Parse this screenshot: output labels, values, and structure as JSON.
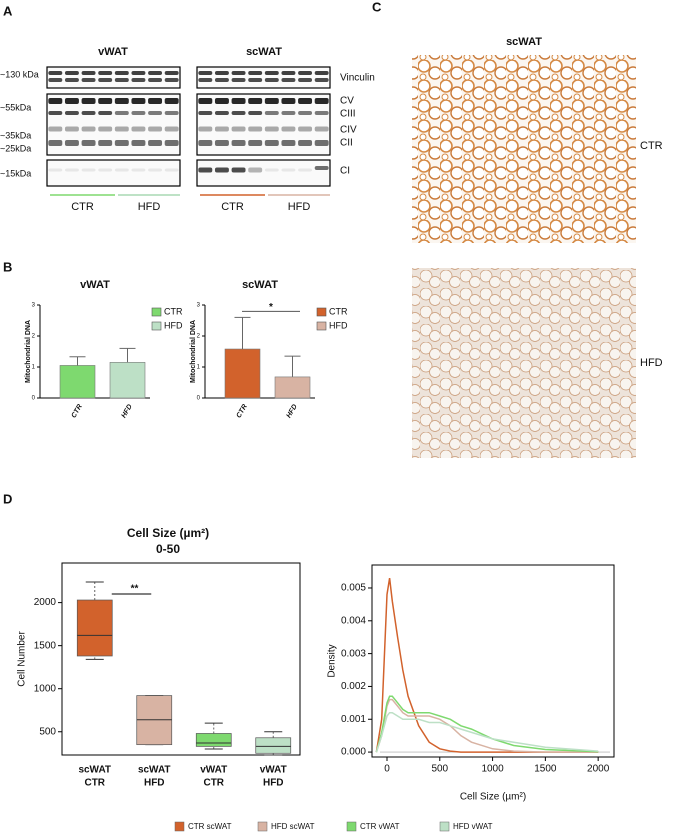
{
  "panel_a": {
    "letter": "A",
    "titles": [
      "vWAT",
      "scWAT"
    ],
    "markers": [
      "~130 kDa",
      "~55kDa",
      "~35kDa",
      "~25kDa",
      "~15kDa"
    ],
    "proteins": [
      "Vinculin",
      "CV",
      "CIII",
      "CIV",
      "CII",
      "CI"
    ],
    "groups": [
      "CTR",
      "HFD",
      "CTR",
      "HFD"
    ]
  },
  "panel_b": {
    "letter": "B"
  },
  "panel_c": {
    "letter": "C",
    "title": "scWAT",
    "labels": [
      "CTR",
      "HFD"
    ]
  },
  "panel_d": {
    "letter": "D"
  },
  "chart_data": [
    {
      "type": "bar",
      "title": "vWAT",
      "y_label": "Mitochondrial DNA",
      "categories": [
        "CTR",
        "HFD"
      ],
      "values": [
        1.05,
        1.15
      ],
      "errors": [
        0.28,
        0.45
      ],
      "colors": [
        "#7ed96f",
        "#bde0c6"
      ],
      "ylim": [
        0,
        3
      ],
      "yticks": [
        0,
        1,
        2,
        3
      ],
      "legend": true
    },
    {
      "type": "bar",
      "title": "scWAT",
      "y_label": "Mitochondrial DNA",
      "categories": [
        "CTR",
        "HFD"
      ],
      "values": [
        1.58,
        0.68
      ],
      "errors": [
        1.02,
        0.67
      ],
      "colors": [
        "#d2622c",
        "#d8b3a3"
      ],
      "ylim": [
        0,
        3
      ],
      "yticks": [
        0,
        1,
        2,
        3
      ],
      "legend": true,
      "significance": "*"
    },
    {
      "type": "box",
      "title": "Cell Size (µm²)",
      "subtitle": "0-50",
      "y_label": "Cell Number",
      "categories": [
        [
          "scWAT",
          "CTR"
        ],
        [
          "scWAT",
          "HFD"
        ],
        [
          "vWAT",
          "CTR"
        ],
        [
          "vWAT",
          "HFD"
        ]
      ],
      "whisker_low": [
        1340,
        350,
        300,
        230
      ],
      "q1": [
        1380,
        350,
        330,
        250
      ],
      "median": [
        1620,
        640,
        370,
        330
      ],
      "q3": [
        2030,
        920,
        480,
        430
      ],
      "whisker_high": [
        2240,
        920,
        600,
        500
      ],
      "colors": [
        "#d2622c",
        "#d8b3a3",
        "#7ed96f",
        "#bde0c6"
      ],
      "ylim": [
        230,
        2460
      ],
      "yticks": [
        500,
        1000,
        1500,
        2000
      ],
      "significance": "**"
    },
    {
      "type": "line",
      "x_label": "Cell Size (µm²)",
      "y_label": "Density",
      "x": [
        -100,
        -50,
        0,
        25,
        50,
        100,
        150,
        200,
        300,
        400,
        500,
        600,
        700,
        800,
        1000,
        1200,
        1500,
        2000
      ],
      "series": [
        {
          "name": "CTR scWAT",
          "color": "#d2622c",
          "values": [
            0,
            0.001,
            0.0048,
            0.0053,
            0.0046,
            0.0035,
            0.0025,
            0.0017,
            0.0008,
            0.0003,
            0.0001,
            3e-05,
            0,
            0,
            0,
            0,
            0,
            0
          ]
        },
        {
          "name": "HFD scWAT",
          "color": "#d8b3a3",
          "values": [
            0,
            0.0005,
            0.0014,
            0.0016,
            0.0016,
            0.0014,
            0.0012,
            0.0011,
            0.0011,
            0.0011,
            0.001,
            0.0008,
            0.0005,
            0.0003,
            0.0001,
            3e-05,
            0,
            0
          ]
        },
        {
          "name": "CTR vWAT",
          "color": "#7ed96f",
          "values": [
            0,
            0.0006,
            0.0015,
            0.0017,
            0.0017,
            0.0015,
            0.0013,
            0.0012,
            0.0012,
            0.0012,
            0.0011,
            0.001,
            0.0008,
            0.0007,
            0.0004,
            0.0002,
            8e-05,
            1e-05
          ]
        },
        {
          "name": "HFD vWAT",
          "color": "#bde0c6",
          "values": [
            0,
            0.0005,
            0.0011,
            0.0012,
            0.0012,
            0.0011,
            0.001,
            0.001,
            0.001,
            0.0009,
            0.0009,
            0.0008,
            0.0007,
            0.0006,
            0.0004,
            0.0003,
            0.00015,
            3e-05
          ]
        }
      ],
      "xlim": [
        -142,
        2150
      ],
      "xticks": [
        0,
        500,
        1000,
        1500,
        2000
      ],
      "ylim": [
        -0.00015,
        0.0057
      ],
      "yticks": [
        {
          "value": 0,
          "label": "0.000"
        },
        {
          "value": 0.001,
          "label": "0.001"
        },
        {
          "value": 0.002,
          "label": "0.002"
        },
        {
          "value": 0.003,
          "label": "0.003"
        },
        {
          "value": 0.004,
          "label": "0.004"
        },
        {
          "value": 0.005,
          "label": "0.005"
        }
      ],
      "legend": "bottom"
    }
  ]
}
